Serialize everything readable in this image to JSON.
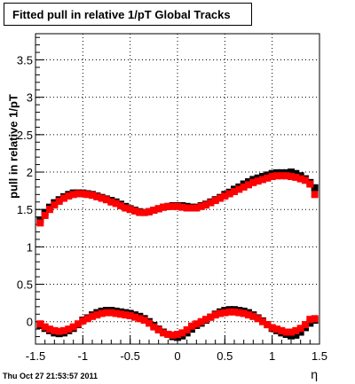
{
  "chart_data": {
    "type": "scatter",
    "title": "Fitted pull in relative 1/pT  Global Tracks",
    "xlabel": "η",
    "ylabel": "pull in relative 1/pT",
    "xlim": [
      -1.5,
      1.5
    ],
    "ylim": [
      -0.3,
      3.85
    ],
    "grid": true,
    "x_ticks": [
      "-1.5",
      "-1",
      "-0.5",
      "0",
      "0.5",
      "1",
      "1.5"
    ],
    "y_ticks": [
      "0",
      "0.5",
      "1",
      "1.5",
      "2",
      "2.5",
      "3",
      "3.5"
    ],
    "series": [
      {
        "color": "#000000",
        "x": [
          -1.45,
          -1.4,
          -1.35,
          -1.3,
          -1.25,
          -1.2,
          -1.15,
          -1.1,
          -1.05,
          -1.0,
          -0.95,
          -0.9,
          -0.85,
          -0.8,
          -0.75,
          -0.7,
          -0.65,
          -0.6,
          -0.55,
          -0.5,
          -0.45,
          -0.4,
          -0.35,
          -0.3,
          -0.25,
          -0.2,
          -0.15,
          -0.1,
          -0.05,
          0.0,
          0.05,
          0.1,
          0.15,
          0.2,
          0.25,
          0.3,
          0.35,
          0.4,
          0.45,
          0.5,
          0.55,
          0.6,
          0.65,
          0.7,
          0.75,
          0.8,
          0.85,
          0.9,
          0.95,
          1.0,
          1.05,
          1.1,
          1.15,
          1.2,
          1.25,
          1.3,
          1.35,
          1.4,
          1.45,
          -1.45,
          -1.4,
          -1.35,
          -1.3,
          -1.25,
          -1.2,
          -1.15,
          -1.1,
          -1.05,
          -1.0,
          -0.95,
          -0.9,
          -0.85,
          -0.8,
          -0.75,
          -0.7,
          -0.65,
          -0.6,
          -0.55,
          -0.5,
          -0.45,
          -0.4,
          -0.35,
          -0.3,
          -0.25,
          -0.2,
          -0.15,
          -0.1,
          -0.05,
          0.0,
          0.05,
          0.1,
          0.15,
          0.2,
          0.25,
          0.3,
          0.35,
          0.4,
          0.45,
          0.5,
          0.55,
          0.6,
          0.65,
          0.7,
          0.75,
          0.8,
          0.85,
          0.9,
          0.95,
          1.0,
          1.05,
          1.1,
          1.15,
          1.2,
          1.25,
          1.3,
          1.35,
          1.4,
          1.45
        ],
        "y": [
          1.36,
          1.46,
          1.53,
          1.59,
          1.63,
          1.67,
          1.7,
          1.72,
          1.72,
          1.72,
          1.71,
          1.7,
          1.68,
          1.66,
          1.64,
          1.62,
          1.6,
          1.57,
          1.54,
          1.51,
          1.49,
          1.47,
          1.46,
          1.47,
          1.49,
          1.51,
          1.53,
          1.54,
          1.55,
          1.55,
          1.55,
          1.54,
          1.53,
          1.53,
          1.55,
          1.57,
          1.6,
          1.63,
          1.66,
          1.7,
          1.73,
          1.77,
          1.8,
          1.84,
          1.87,
          1.9,
          1.92,
          1.94,
          1.96,
          1.98,
          1.99,
          1.99,
          1.99,
          2.0,
          1.98,
          1.95,
          1.91,
          1.86,
          1.79,
          -0.05,
          -0.09,
          -0.12,
          -0.15,
          -0.16,
          -0.15,
          -0.12,
          -0.09,
          -0.04,
          0.02,
          0.05,
          0.09,
          0.12,
          0.14,
          0.15,
          0.15,
          0.14,
          0.13,
          0.12,
          0.11,
          0.09,
          0.07,
          0.04,
          0.0,
          -0.05,
          -0.1,
          -0.14,
          -0.17,
          -0.2,
          -0.21,
          -0.19,
          -0.15,
          -0.1,
          -0.05,
          -0.02,
          0.02,
          0.06,
          0.1,
          0.13,
          0.15,
          0.16,
          0.16,
          0.15,
          0.14,
          0.12,
          0.09,
          0.05,
          0.01,
          -0.04,
          -0.09,
          -0.12,
          -0.15,
          -0.17,
          -0.19,
          -0.18,
          -0.14,
          -0.08,
          -0.02,
          0.02
        ]
      },
      {
        "color": "#ff0000",
        "x": [
          -1.45,
          -1.4,
          -1.35,
          -1.3,
          -1.25,
          -1.2,
          -1.15,
          -1.1,
          -1.05,
          -1.0,
          -0.95,
          -0.9,
          -0.85,
          -0.8,
          -0.75,
          -0.7,
          -0.65,
          -0.6,
          -0.55,
          -0.5,
          -0.45,
          -0.4,
          -0.35,
          -0.3,
          -0.25,
          -0.2,
          -0.15,
          -0.1,
          -0.05,
          0.0,
          0.05,
          0.1,
          0.15,
          0.2,
          0.25,
          0.3,
          0.35,
          0.4,
          0.45,
          0.5,
          0.55,
          0.6,
          0.65,
          0.7,
          0.75,
          0.8,
          0.85,
          0.9,
          0.95,
          1.0,
          1.05,
          1.1,
          1.15,
          1.2,
          1.25,
          1.3,
          1.35,
          1.4,
          1.45,
          -1.45,
          -1.4,
          -1.35,
          -1.3,
          -1.25,
          -1.2,
          -1.15,
          -1.1,
          -1.05,
          -1.0,
          -0.95,
          -0.9,
          -0.85,
          -0.8,
          -0.75,
          -0.7,
          -0.65,
          -0.6,
          -0.55,
          -0.5,
          -0.45,
          -0.4,
          -0.35,
          -0.3,
          -0.25,
          -0.2,
          -0.15,
          -0.1,
          -0.05,
          0.0,
          0.05,
          0.1,
          0.15,
          0.2,
          0.25,
          0.3,
          0.35,
          0.4,
          0.45,
          0.5,
          0.55,
          0.6,
          0.65,
          0.7,
          0.75,
          0.8,
          0.85,
          0.9,
          0.95,
          1.0,
          1.05,
          1.1,
          1.15,
          1.2,
          1.25,
          1.3,
          1.35,
          1.4,
          1.45
        ],
        "y": [
          1.32,
          1.42,
          1.5,
          1.56,
          1.61,
          1.65,
          1.68,
          1.7,
          1.71,
          1.71,
          1.7,
          1.69,
          1.67,
          1.65,
          1.63,
          1.6,
          1.58,
          1.55,
          1.52,
          1.5,
          1.48,
          1.46,
          1.46,
          1.47,
          1.49,
          1.51,
          1.53,
          1.54,
          1.54,
          1.54,
          1.53,
          1.52,
          1.52,
          1.52,
          1.54,
          1.56,
          1.59,
          1.62,
          1.65,
          1.68,
          1.71,
          1.74,
          1.77,
          1.8,
          1.83,
          1.86,
          1.88,
          1.9,
          1.92,
          1.94,
          1.95,
          1.95,
          1.95,
          1.94,
          1.93,
          1.91,
          1.89,
          1.84,
          1.7,
          -0.03,
          -0.07,
          -0.1,
          -0.12,
          -0.13,
          -0.12,
          -0.1,
          -0.07,
          -0.03,
          0.01,
          0.04,
          0.07,
          0.09,
          0.11,
          0.12,
          0.12,
          0.11,
          0.1,
          0.09,
          0.08,
          0.06,
          0.04,
          0.02,
          -0.02,
          -0.07,
          -0.11,
          -0.15,
          -0.17,
          -0.18,
          -0.17,
          -0.15,
          -0.11,
          -0.06,
          -0.03,
          0.0,
          0.03,
          0.06,
          0.09,
          0.11,
          0.12,
          0.13,
          0.13,
          0.12,
          0.11,
          0.09,
          0.07,
          0.04,
          0.0,
          -0.04,
          -0.08,
          -0.1,
          -0.12,
          -0.14,
          -0.14,
          -0.12,
          -0.09,
          -0.04,
          0.03,
          0.04
        ]
      }
    ]
  },
  "title_text": "Fitted pull in relative 1/pT  Global Tracks",
  "ylabel_text": "pull in relative 1/pT",
  "xlabel_text": "η",
  "timestamp_text": "Thu Oct 27 21:53:57 2011"
}
